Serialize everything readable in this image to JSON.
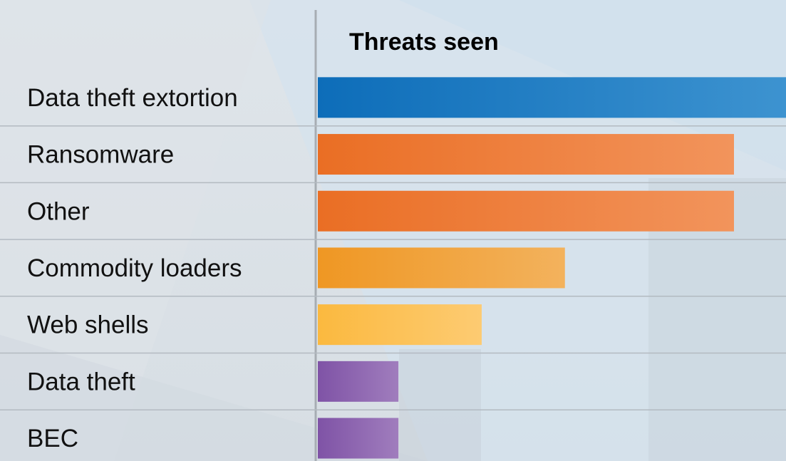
{
  "chart_data": {
    "type": "bar",
    "orientation": "horizontal",
    "title": "",
    "value_column_header": "Threats seen",
    "categories": [
      "Data theft extortion",
      "Ransomware",
      "Other",
      "Commodity loaders",
      "Web shells",
      "Data theft",
      "BEC"
    ],
    "values": [
      18,
      16,
      16,
      9.5,
      6.3,
      3.1,
      3.1
    ],
    "bar_colors": [
      [
        "#0d6db9",
        "#3d93d0"
      ],
      [
        "#ea6e24",
        "#f2945c"
      ],
      [
        "#ea6e24",
        "#f2945c"
      ],
      [
        "#ef9723",
        "#f3b25d"
      ],
      [
        "#fbb93f",
        "#fdcb72"
      ],
      [
        "#7f53a6",
        "#a07dbd"
      ],
      [
        "#7f53a6",
        "#a07dbd"
      ]
    ],
    "xlim": [
      0,
      18
    ],
    "xlabel": "",
    "ylabel": "",
    "grid": false,
    "legend": "none",
    "value_labels_shown": false
  }
}
